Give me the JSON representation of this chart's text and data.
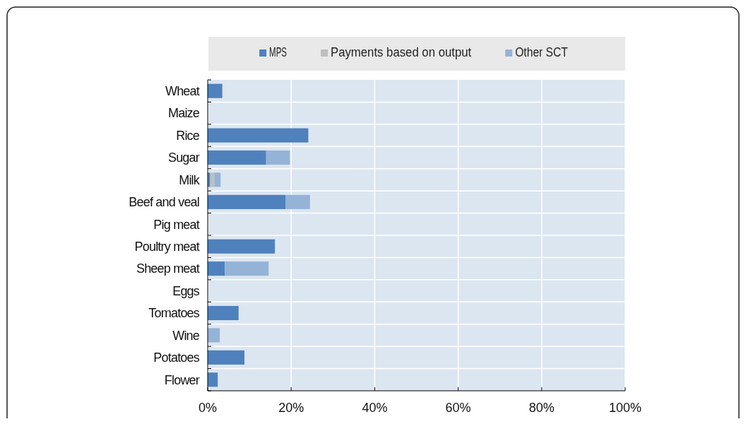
{
  "chart_data": {
    "type": "bar",
    "orientation": "horizontal",
    "stacked": true,
    "categories": [
      "Wheat",
      "Maize",
      "Rice",
      "Sugar",
      "Milk",
      "Beef and veal",
      "Pig meat",
      "Poultry meat",
      "Sheep meat",
      "Eggs",
      "Tomatoes",
      "Wine",
      "Potatoes",
      "Flower"
    ],
    "series": [
      {
        "name": "MPS",
        "color": "#4f81bd",
        "values": [
          3.5,
          0,
          24.1,
          14.0,
          0.6,
          18.7,
          0,
          16.1,
          4.1,
          0,
          7.4,
          0,
          8.8,
          2.4
        ]
      },
      {
        "name": "Payments based on output",
        "color": "#bfbfbf",
        "values": [
          0,
          0,
          0,
          0,
          1.0,
          0,
          0,
          0,
          0,
          0,
          0,
          0,
          0,
          0
        ]
      },
      {
        "name": "Other SCT",
        "color": "#95b3d7",
        "values": [
          0,
          0,
          0,
          5.7,
          1.5,
          5.8,
          0,
          0,
          10.5,
          0,
          0,
          2.9,
          0,
          0
        ]
      }
    ],
    "xlim": [
      0,
      100
    ],
    "xticks": [
      {
        "value": 0,
        "label": "0%"
      },
      {
        "value": 20,
        "label": "20%"
      },
      {
        "value": 40,
        "label": "40%"
      },
      {
        "value": 60,
        "label": "60%"
      },
      {
        "value": 80,
        "label": "80%"
      },
      {
        "value": 100,
        "label": "100%"
      }
    ],
    "grid": true,
    "legend": "top"
  }
}
